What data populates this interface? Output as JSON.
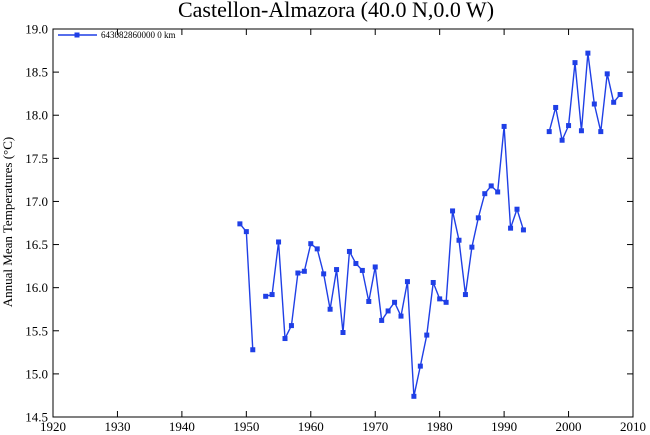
{
  "chart_data": {
    "type": "line",
    "title": "Castellon-Almazora (40.0 N,0.0 W)",
    "xlabel": "",
    "ylabel": "Annual Mean Temperatures (°C)",
    "xlim": [
      1920,
      2010
    ],
    "ylim": [
      14.5,
      19.0
    ],
    "x_ticks": [
      1920,
      1930,
      1940,
      1950,
      1960,
      1970,
      1980,
      1990,
      2000,
      2010
    ],
    "y_ticks": [
      "14.5",
      "15.0",
      "15.5",
      "16.0",
      "16.5",
      "17.0",
      "17.5",
      "18.0",
      "18.5",
      "19.0"
    ],
    "grid": false,
    "legend_position": "top-left",
    "series_color": "#1f3fe6",
    "series": [
      {
        "name": "643082860000 0 km",
        "points": [
          [
            1949,
            16.74
          ],
          [
            1950,
            16.65
          ],
          [
            1951,
            15.28
          ],
          [
            1952,
            null
          ],
          [
            1953,
            15.9
          ],
          [
            1954,
            15.92
          ],
          [
            1955,
            16.53
          ],
          [
            1956,
            15.41
          ],
          [
            1957,
            15.56
          ],
          [
            1958,
            16.17
          ],
          [
            1959,
            16.19
          ],
          [
            1960,
            16.51
          ],
          [
            1961,
            16.45
          ],
          [
            1962,
            16.16
          ],
          [
            1963,
            15.75
          ],
          [
            1964,
            16.21
          ],
          [
            1965,
            15.48
          ],
          [
            1966,
            16.42
          ],
          [
            1967,
            16.28
          ],
          [
            1968,
            16.2
          ],
          [
            1969,
            15.84
          ],
          [
            1970,
            16.24
          ],
          [
            1971,
            15.62
          ],
          [
            1972,
            15.73
          ],
          [
            1973,
            15.83
          ],
          [
            1974,
            15.67
          ],
          [
            1975,
            16.07
          ],
          [
            1976,
            14.74
          ],
          [
            1977,
            15.09
          ],
          [
            1978,
            15.45
          ],
          [
            1979,
            16.06
          ],
          [
            1980,
            15.87
          ],
          [
            1981,
            15.83
          ],
          [
            1982,
            16.89
          ],
          [
            1983,
            16.55
          ],
          [
            1984,
            15.92
          ],
          [
            1985,
            16.47
          ],
          [
            1986,
            16.81
          ],
          [
            1987,
            17.09
          ],
          [
            1988,
            17.18
          ],
          [
            1989,
            17.11
          ],
          [
            1990,
            17.87
          ],
          [
            1991,
            16.69
          ],
          [
            1992,
            16.91
          ],
          [
            1993,
            16.67
          ],
          [
            1994,
            null
          ],
          [
            1995,
            null
          ],
          [
            1996,
            null
          ],
          [
            1997,
            17.81
          ],
          [
            1998,
            18.09
          ],
          [
            1999,
            17.71
          ],
          [
            2000,
            17.88
          ],
          [
            2001,
            18.61
          ],
          [
            2002,
            17.82
          ],
          [
            2003,
            18.72
          ],
          [
            2004,
            18.13
          ],
          [
            2005,
            17.81
          ],
          [
            2006,
            18.48
          ],
          [
            2007,
            18.15
          ],
          [
            2008,
            18.24
          ]
        ]
      }
    ]
  }
}
